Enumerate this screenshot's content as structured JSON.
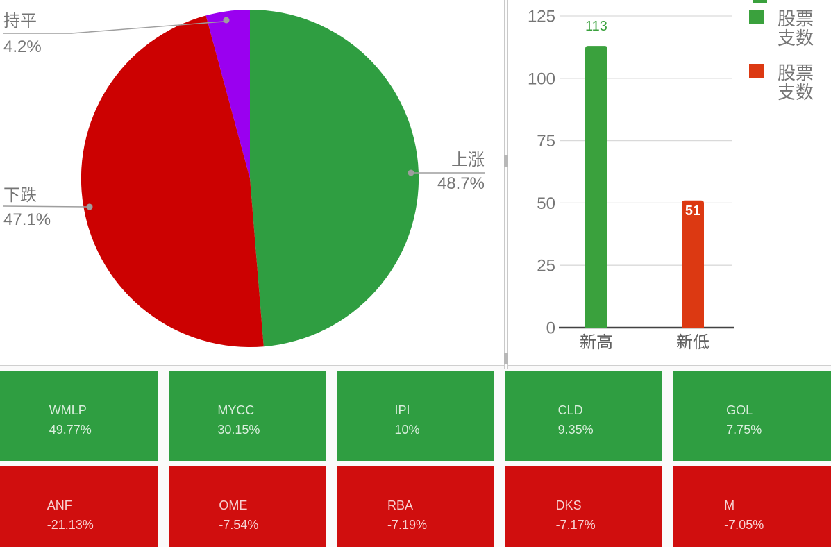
{
  "chart_data": [
    {
      "id": "market-breadth-pie",
      "type": "pie",
      "title": "",
      "direction": "clockwise",
      "start_angle_deg": 0,
      "label_color": "#757575",
      "slices": [
        {
          "label": "上涨",
          "value": 48.7,
          "display": "48.7%",
          "color": "#2f9e41"
        },
        {
          "label": "下跌",
          "value": 47.1,
          "display": "47.1%",
          "color": "#cc0101"
        },
        {
          "label": "持平",
          "value": 4.2,
          "display": "4.2%",
          "color": "#9a00f0"
        }
      ]
    },
    {
      "id": "new-high-low-bar",
      "type": "bar",
      "title": "",
      "categories": [
        "新高",
        "新低"
      ],
      "values": [
        113,
        51
      ],
      "value_labels": [
        "113",
        "51"
      ],
      "value_label_style": [
        "above",
        "inside"
      ],
      "bar_colors": [
        "#3aa13d",
        "#dc3912"
      ],
      "yticks": [
        0,
        25,
        50,
        75,
        100,
        125
      ],
      "ylim": [
        0,
        125
      ],
      "grid": true,
      "legend_position": "right",
      "legend": [
        {
          "label": "股票支数",
          "color": "#3aa13d"
        },
        {
          "label": "股票支数",
          "color": "#dc3912"
        }
      ]
    },
    {
      "id": "top-movers-tiles",
      "type": "heatmap",
      "rows": [
        {
          "kind": "gainers",
          "color": "#2f9e41",
          "cells": [
            {
              "symbol": "WMLP",
              "change": "49.77%"
            },
            {
              "symbol": "MYCC",
              "change": "30.15%"
            },
            {
              "symbol": "IPI",
              "change": "10%"
            },
            {
              "symbol": "CLD",
              "change": "9.35%"
            },
            {
              "symbol": "GOL",
              "change": "7.75%"
            }
          ]
        },
        {
          "kind": "losers",
          "color": "#d00e0e",
          "cells": [
            {
              "symbol": "ANF",
              "change": "-21.13%"
            },
            {
              "symbol": "OME",
              "change": "-7.54%"
            },
            {
              "symbol": "RBA",
              "change": "-7.19%"
            },
            {
              "symbol": "DKS",
              "change": "-7.17%"
            },
            {
              "symbol": "M",
              "change": "-7.05%"
            }
          ]
        }
      ]
    }
  ],
  "colors": {
    "pie_green": "#2f9e41",
    "pie_red": "#cc0101",
    "pie_purple": "#9a00f0",
    "bar_green": "#3aa13d",
    "bar_red": "#dc3912",
    "tile_green": "#2f9e41",
    "tile_red": "#d00e0e",
    "label_gray": "#757575"
  }
}
